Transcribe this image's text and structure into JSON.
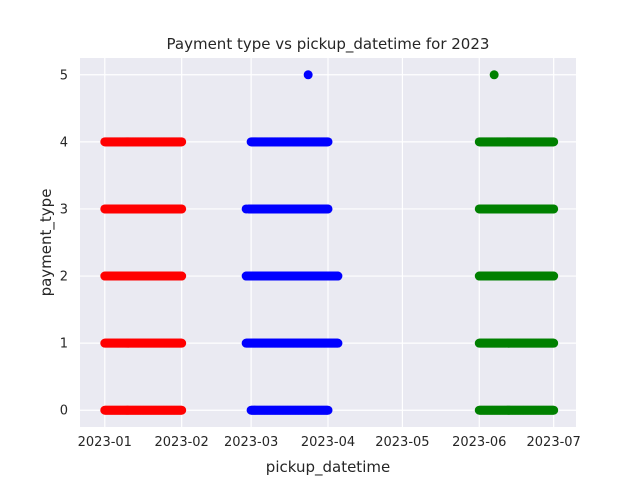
{
  "chart_data": {
    "type": "scatter",
    "title": "Payment type vs pickup_datetime for 2023",
    "xlabel": "pickup_datetime",
    "ylabel": "payment_type",
    "x_ticks": [
      "2023-01",
      "2023-02",
      "2023-03",
      "2023-04",
      "2023-05",
      "2023-06",
      "2023-07"
    ],
    "y_ticks": [
      0,
      1,
      2,
      3,
      4,
      5
    ],
    "xlim": [
      "2022-12-22",
      "2023-07-10"
    ],
    "ylim": [
      -0.25,
      5.25
    ],
    "grid": true,
    "background": "#eaeaf2",
    "series": [
      {
        "color": "#ff0000",
        "clusters": [
          {
            "y": 0,
            "x_start": "2023-01-01",
            "x_end": "2023-02-01"
          },
          {
            "y": 1,
            "x_start": "2023-01-01",
            "x_end": "2023-02-01"
          },
          {
            "y": 2,
            "x_start": "2023-01-01",
            "x_end": "2023-02-01"
          },
          {
            "y": 3,
            "x_start": "2023-01-01",
            "x_end": "2023-02-01"
          },
          {
            "y": 4,
            "x_start": "2023-01-01",
            "x_end": "2023-02-01"
          }
        ],
        "outliers": []
      },
      {
        "color": "#0000ff",
        "clusters": [
          {
            "y": 0,
            "x_start": "2023-03-01",
            "x_end": "2023-04-01"
          },
          {
            "y": 1,
            "x_start": "2023-02-27",
            "x_end": "2023-04-05"
          },
          {
            "y": 2,
            "x_start": "2023-02-27",
            "x_end": "2023-04-05"
          },
          {
            "y": 3,
            "x_start": "2023-02-28",
            "x_end": "2023-04-01"
          },
          {
            "y": 4,
            "x_start": "2023-03-01",
            "x_end": "2023-04-01"
          }
        ],
        "outliers": [
          {
            "x": "2023-02-27",
            "y": 3
          },
          {
            "x": "2023-03-24",
            "y": 5
          }
        ]
      },
      {
        "color": "#008000",
        "clusters": [
          {
            "y": 0,
            "x_start": "2023-06-01",
            "x_end": "2023-07-01"
          },
          {
            "y": 1,
            "x_start": "2023-06-01",
            "x_end": "2023-07-01"
          },
          {
            "y": 2,
            "x_start": "2023-06-01",
            "x_end": "2023-07-01"
          },
          {
            "y": 3,
            "x_start": "2023-06-01",
            "x_end": "2023-07-01"
          },
          {
            "y": 4,
            "x_start": "2023-06-01",
            "x_end": "2023-07-01"
          }
        ],
        "outliers": [
          {
            "x": "2023-06-07",
            "y": 5
          }
        ]
      }
    ]
  }
}
